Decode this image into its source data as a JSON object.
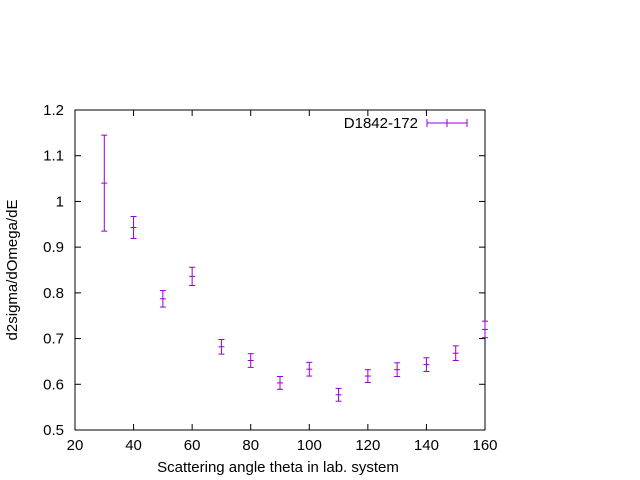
{
  "chart_data": {
    "type": "scatter",
    "xlabel": "Scattering angle theta in lab. system",
    "ylabel": "d2sigma/dOmega/dE",
    "xlim": [
      20,
      160
    ],
    "ylim": [
      0.5,
      1.2
    ],
    "x_ticks": [
      20,
      40,
      60,
      80,
      100,
      120,
      140,
      160
    ],
    "y_ticks": [
      0.5,
      0.6,
      0.7,
      0.8,
      0.9,
      1,
      1.1,
      1.2
    ],
    "x_tick_labels": [
      "20",
      "40",
      "60",
      "80",
      "100",
      "120",
      "140",
      "160"
    ],
    "y_tick_labels": [
      "0.5",
      "0.6",
      "0.7",
      "0.8",
      "0.9",
      "1",
      "1.1",
      "1.2"
    ],
    "grid": false,
    "legend_position": "top-right",
    "error_bars": true,
    "series": [
      {
        "name": "D1842-172",
        "color": "#9400d3",
        "x": [
          30,
          40,
          50,
          60,
          70,
          80,
          90,
          100,
          110,
          120,
          130,
          140,
          150,
          160
        ],
        "y": [
          1.04,
          0.943,
          0.787,
          0.836,
          0.682,
          0.652,
          0.603,
          0.633,
          0.577,
          0.618,
          0.632,
          0.643,
          0.668,
          0.72
        ],
        "yerr": [
          0.105,
          0.024,
          0.018,
          0.02,
          0.016,
          0.015,
          0.014,
          0.015,
          0.014,
          0.014,
          0.015,
          0.015,
          0.016,
          0.018
        ]
      }
    ]
  }
}
